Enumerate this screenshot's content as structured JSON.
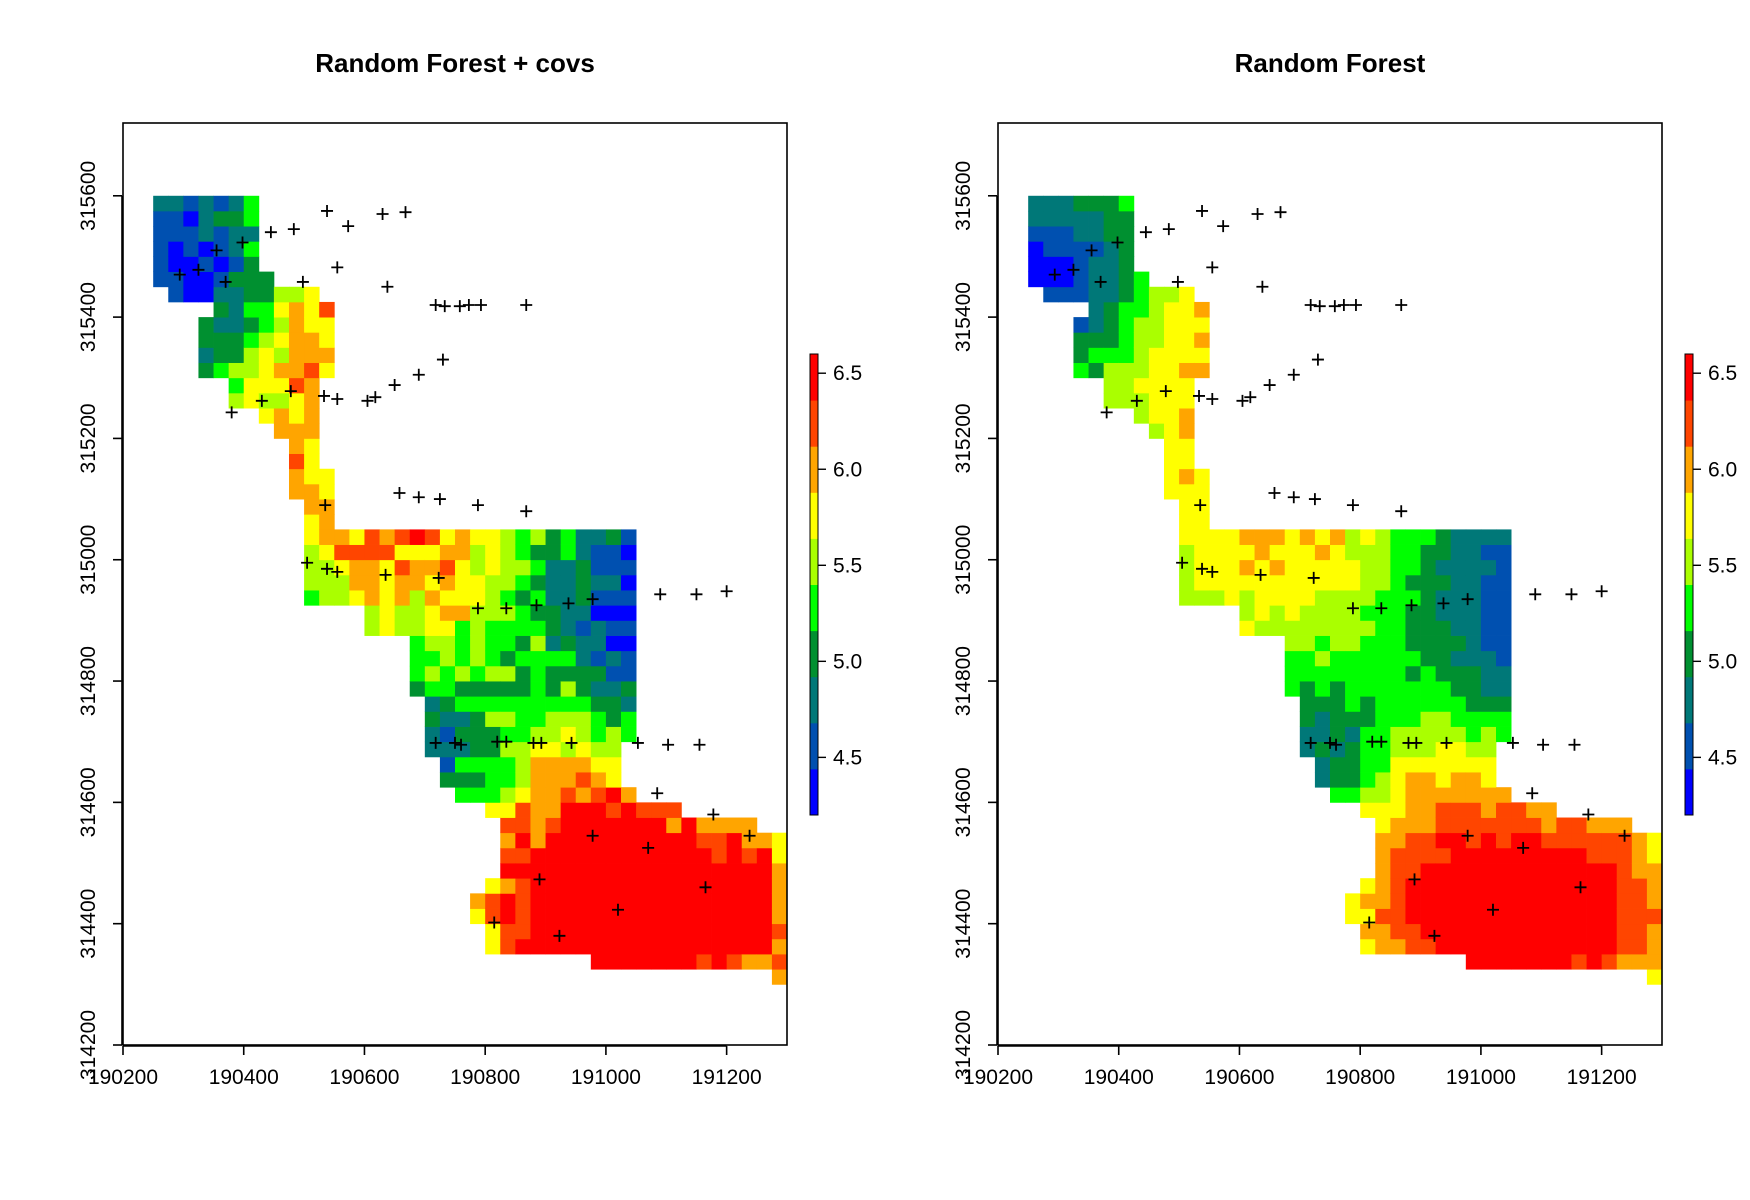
{
  "chart_data": [
    {
      "type": "heatmap",
      "title": "Random Forest + covs",
      "xlim": [
        190200,
        191300
      ],
      "ylim": [
        314200,
        315720
      ],
      "x_ticks": [
        "190200",
        "190400",
        "190600",
        "190800",
        "191000",
        "191200"
      ],
      "y_ticks": [
        "314200",
        "314400",
        "314600",
        "314800",
        "315000",
        "315200",
        "315400",
        "315600"
      ],
      "legend": {
        "range": [
          4.2,
          6.6
        ],
        "ticks": [
          "4.5",
          "5.0",
          "5.5",
          "6.0",
          "6.5"
        ],
        "position": "right"
      },
      "grid": false,
      "colormap": [
        "#0000ff",
        "#0050b0",
        "#007878",
        "#009030",
        "#00ff00",
        "#aaff00",
        "#ffff00",
        "#ffa500",
        "#ff4500",
        "#ff0000"
      ],
      "surface_values_by_region": [
        {
          "region": "northwest edge",
          "value": 4.4
        },
        {
          "region": "north-central ridge",
          "value": 5.7
        },
        {
          "region": "central band",
          "value": 5.6
        },
        {
          "region": "east block (x 191000-191250, y 314700-315050)",
          "value": 4.5
        },
        {
          "region": "southeast lobe",
          "value": 6.2
        },
        {
          "region": "southeast peak",
          "value": 6.5
        }
      ],
      "points": [
        [
          190294,
          315470
        ],
        [
          190325,
          315478
        ],
        [
          190355,
          315510
        ],
        [
          190370,
          315458
        ],
        [
          190398,
          315523
        ],
        [
          190445,
          315540
        ],
        [
          190483,
          315545
        ],
        [
          190498,
          315458
        ],
        [
          190538,
          315575
        ],
        [
          190555,
          315482
        ],
        [
          190573,
          315550
        ],
        [
          190630,
          315570
        ],
        [
          190668,
          315573
        ],
        [
          190638,
          315450
        ],
        [
          190718,
          315420
        ],
        [
          190733,
          315418
        ],
        [
          190758,
          315418
        ],
        [
          190773,
          315420
        ],
        [
          190793,
          315420
        ],
        [
          190868,
          315420
        ],
        [
          190380,
          315243
        ],
        [
          190430,
          315262
        ],
        [
          190478,
          315278
        ],
        [
          190533,
          315270
        ],
        [
          190555,
          315265
        ],
        [
          190605,
          315262
        ],
        [
          190618,
          315268
        ],
        [
          190650,
          315288
        ],
        [
          190690,
          315305
        ],
        [
          190730,
          315330
        ],
        [
          190535,
          315090
        ],
        [
          190658,
          315110
        ],
        [
          190690,
          315103
        ],
        [
          190725,
          315100
        ],
        [
          190788,
          315090
        ],
        [
          190868,
          315080
        ],
        [
          190505,
          314995
        ],
        [
          190538,
          314985
        ],
        [
          190555,
          314980
        ],
        [
          190635,
          314975
        ],
        [
          190723,
          314970
        ],
        [
          190788,
          314920
        ],
        [
          190835,
          314920
        ],
        [
          190885,
          314925
        ],
        [
          190938,
          314928
        ],
        [
          190978,
          314935
        ],
        [
          191090,
          314943
        ],
        [
          191150,
          314943
        ],
        [
          191200,
          314948
        ],
        [
          190718,
          314698
        ],
        [
          190750,
          314698
        ],
        [
          190760,
          314695
        ],
        [
          190820,
          314700
        ],
        [
          190835,
          314700
        ],
        [
          190880,
          314698
        ],
        [
          190893,
          314698
        ],
        [
          190943,
          314698
        ],
        [
          191053,
          314698
        ],
        [
          191103,
          314695
        ],
        [
          191155,
          314695
        ],
        [
          191085,
          314615
        ],
        [
          191178,
          314580
        ],
        [
          191238,
          314545
        ],
        [
          190978,
          314545
        ],
        [
          191070,
          314525
        ],
        [
          190890,
          314473
        ],
        [
          191165,
          314460
        ],
        [
          191020,
          314423
        ],
        [
          190815,
          314402
        ],
        [
          190923,
          314380
        ]
      ]
    },
    {
      "type": "heatmap",
      "title": "Random Forest",
      "xlim": [
        190200,
        191300
      ],
      "ylim": [
        314200,
        315720
      ],
      "x_ticks": [
        "190200",
        "190400",
        "190600",
        "190800",
        "191000",
        "191200"
      ],
      "y_ticks": [
        "314200",
        "314400",
        "314600",
        "314800",
        "315000",
        "315200",
        "315400",
        "315600"
      ],
      "legend": {
        "range": [
          4.2,
          6.6
        ],
        "ticks": [
          "4.5",
          "5.0",
          "5.5",
          "6.0",
          "6.5"
        ],
        "position": "right"
      },
      "grid": false,
      "colormap": [
        "#0000ff",
        "#0050b0",
        "#007878",
        "#009030",
        "#00ff00",
        "#aaff00",
        "#ffff00",
        "#ffa500",
        "#ff4500",
        "#ff0000"
      ],
      "surface_values_by_region": [
        {
          "region": "northwest edge",
          "value": 4.6
        },
        {
          "region": "north-central ridge",
          "value": 5.6
        },
        {
          "region": "central band",
          "value": 5.5
        },
        {
          "region": "east block (x 191000-191250, y 314700-315050)",
          "value": 4.6
        },
        {
          "region": "southeast lobe",
          "value": 6.1
        },
        {
          "region": "southeast peak",
          "value": 6.3
        }
      ],
      "points": [
        [
          190294,
          315470
        ],
        [
          190325,
          315478
        ],
        [
          190355,
          315510
        ],
        [
          190370,
          315458
        ],
        [
          190398,
          315523
        ],
        [
          190445,
          315540
        ],
        [
          190483,
          315545
        ],
        [
          190498,
          315458
        ],
        [
          190538,
          315575
        ],
        [
          190555,
          315482
        ],
        [
          190573,
          315550
        ],
        [
          190630,
          315570
        ],
        [
          190668,
          315573
        ],
        [
          190638,
          315450
        ],
        [
          190718,
          315420
        ],
        [
          190733,
          315418
        ],
        [
          190758,
          315418
        ],
        [
          190773,
          315420
        ],
        [
          190793,
          315420
        ],
        [
          190868,
          315420
        ],
        [
          190380,
          315243
        ],
        [
          190430,
          315262
        ],
        [
          190478,
          315278
        ],
        [
          190533,
          315270
        ],
        [
          190555,
          315265
        ],
        [
          190605,
          315262
        ],
        [
          190618,
          315268
        ],
        [
          190650,
          315288
        ],
        [
          190690,
          315305
        ],
        [
          190730,
          315330
        ],
        [
          190535,
          315090
        ],
        [
          190658,
          315110
        ],
        [
          190690,
          315103
        ],
        [
          190725,
          315100
        ],
        [
          190788,
          315090
        ],
        [
          190868,
          315080
        ],
        [
          190505,
          314995
        ],
        [
          190538,
          314985
        ],
        [
          190555,
          314980
        ],
        [
          190635,
          314975
        ],
        [
          190723,
          314970
        ],
        [
          190788,
          314920
        ],
        [
          190835,
          314920
        ],
        [
          190885,
          314925
        ],
        [
          190938,
          314928
        ],
        [
          190978,
          314935
        ],
        [
          191090,
          314943
        ],
        [
          191150,
          314943
        ],
        [
          191200,
          314948
        ],
        [
          190718,
          314698
        ],
        [
          190750,
          314698
        ],
        [
          190760,
          314695
        ],
        [
          190820,
          314700
        ],
        [
          190835,
          314700
        ],
        [
          190880,
          314698
        ],
        [
          190893,
          314698
        ],
        [
          190943,
          314698
        ],
        [
          191053,
          314698
        ],
        [
          191103,
          314695
        ],
        [
          191155,
          314695
        ],
        [
          191085,
          314615
        ],
        [
          191178,
          314580
        ],
        [
          191238,
          314545
        ],
        [
          190978,
          314545
        ],
        [
          191070,
          314525
        ],
        [
          190890,
          314473
        ],
        [
          191165,
          314460
        ],
        [
          191020,
          314423
        ],
        [
          190815,
          314402
        ],
        [
          190923,
          314380
        ]
      ]
    }
  ]
}
